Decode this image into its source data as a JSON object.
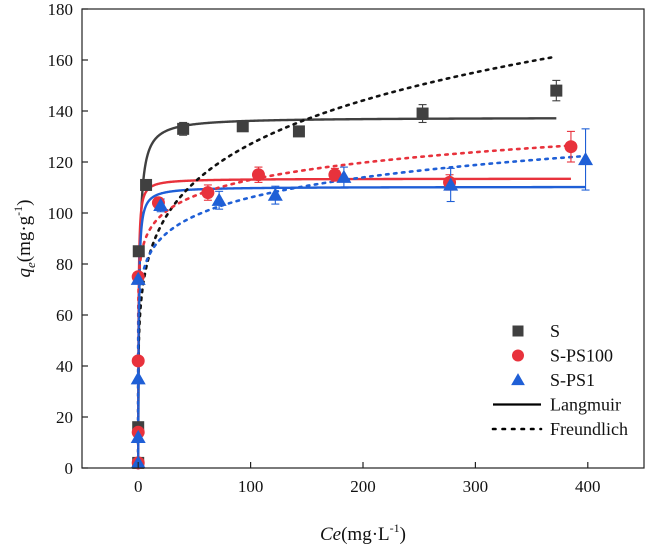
{
  "chart_data": {
    "type": "scatter",
    "xlabel": {
      "italic": "Ce",
      "rest": "(mg·L",
      "sup": "-1",
      "close": ")"
    },
    "ylabel": {
      "italic": "q",
      "sub": "e",
      "rest": "(mg·g",
      "sup": "-1",
      "close": ")"
    },
    "xlim": [
      -50,
      450
    ],
    "ylim": [
      0,
      180
    ],
    "xticks": [
      0,
      100,
      200,
      300,
      400
    ],
    "yticks": [
      0,
      20,
      40,
      60,
      80,
      100,
      120,
      140,
      160,
      180
    ],
    "xtick_labels": [
      "0",
      "100",
      "200",
      "300",
      "400"
    ],
    "ytick_labels": [
      "0",
      "20",
      "40",
      "60",
      "80",
      "100",
      "120",
      "140",
      "160",
      "180"
    ],
    "legend_position": "bottom-right",
    "series": [
      {
        "name": "S",
        "color": "#404040",
        "marker": "square",
        "points": [
          {
            "x": 0,
            "y": 2,
            "err": 1
          },
          {
            "x": 0,
            "y": 16,
            "err": 1
          },
          {
            "x": 0.5,
            "y": 85,
            "err": 1
          },
          {
            "x": 7,
            "y": 111,
            "err": 1.5
          },
          {
            "x": 40,
            "y": 133,
            "err": 2.5
          },
          {
            "x": 93,
            "y": 134,
            "err": 1.5
          },
          {
            "x": 143,
            "y": 132,
            "err": 1
          },
          {
            "x": 253,
            "y": 139,
            "err": 3.5
          },
          {
            "x": 372,
            "y": 148,
            "err": 4
          }
        ]
      },
      {
        "name": "S-PS100",
        "color": "#e8323c",
        "marker": "circle",
        "points": [
          {
            "x": 0,
            "y": 2,
            "err": 1
          },
          {
            "x": 0,
            "y": 14,
            "err": 1
          },
          {
            "x": 0,
            "y": 42,
            "err": 1
          },
          {
            "x": 0,
            "y": 75,
            "err": 1
          },
          {
            "x": 18,
            "y": 104,
            "err": 2
          },
          {
            "x": 62,
            "y": 108,
            "err": 3
          },
          {
            "x": 107,
            "y": 115,
            "err": 3
          },
          {
            "x": 175,
            "y": 115,
            "err": 2.5
          },
          {
            "x": 277,
            "y": 112,
            "err": 3
          },
          {
            "x": 385,
            "y": 126,
            "err": 6
          }
        ]
      },
      {
        "name": "S-PS1",
        "color": "#1f5fd6",
        "marker": "triangle",
        "points": [
          {
            "x": 0,
            "y": 2,
            "err": 1
          },
          {
            "x": 0,
            "y": 12,
            "err": 1
          },
          {
            "x": 0,
            "y": 35,
            "err": 1
          },
          {
            "x": 0,
            "y": 74,
            "err": 1
          },
          {
            "x": 20,
            "y": 103,
            "err": 2.5
          },
          {
            "x": 72,
            "y": 105,
            "err": 3.5
          },
          {
            "x": 122,
            "y": 107,
            "err": 3.5
          },
          {
            "x": 183,
            "y": 114,
            "err": 4
          },
          {
            "x": 278,
            "y": 111,
            "err": 6.5
          },
          {
            "x": 398,
            "y": 121,
            "err": 12
          }
        ]
      }
    ],
    "fits": [
      {
        "series": "S",
        "model": "Langmuir",
        "qm": 137.5,
        "kl": 1.0,
        "x_max": 372
      },
      {
        "series": "S-PS100",
        "model": "Langmuir",
        "qm": 113.5,
        "kl": 3.0,
        "x_max": 385
      },
      {
        "series": "S-PS1",
        "model": "Langmuir",
        "qm": 110.3,
        "kl": 2.0,
        "x_max": 398
      },
      {
        "series": "S",
        "model": "Freundlich",
        "kf": 55,
        "n": 5.5,
        "x_max": 372
      },
      {
        "series": "S-PS100",
        "model": "Freundlich",
        "kf": 77,
        "n": 12,
        "x_max": 385
      },
      {
        "series": "S-PS1",
        "model": "Freundlich",
        "kf": 66,
        "n": 9.7,
        "x_max": 398
      }
    ],
    "legend": [
      {
        "label": "S",
        "kind": "marker",
        "marker": "square",
        "color": "#404040"
      },
      {
        "label": "S-PS100",
        "kind": "marker",
        "marker": "circle",
        "color": "#e8323c"
      },
      {
        "label": "S-PS1",
        "kind": "marker",
        "marker": "triangle",
        "color": "#1f5fd6"
      },
      {
        "label": "Langmuir",
        "kind": "line",
        "dash": "solid",
        "color": "#000000"
      },
      {
        "label": "Freundlich",
        "kind": "line",
        "dash": "dotted",
        "color": "#000000"
      }
    ]
  }
}
